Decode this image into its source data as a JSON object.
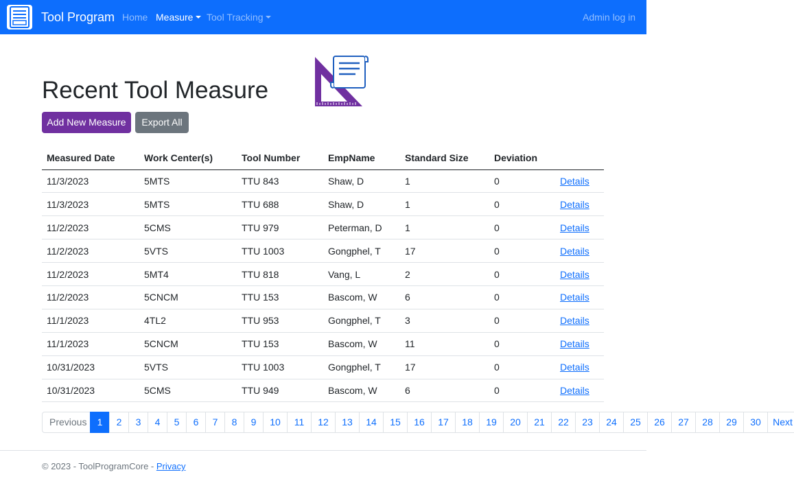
{
  "navbar": {
    "brand": "Tool Program",
    "items": [
      {
        "label": "Home"
      },
      {
        "label": "Measure"
      },
      {
        "label": "Tool Tracking"
      }
    ],
    "login": "Admin log in"
  },
  "page": {
    "title": "Recent Tool Measure",
    "add_button": "Add New Measure",
    "export_button": "Export All"
  },
  "table": {
    "headers": [
      "Measured Date",
      "Work Center(s)",
      "Tool Number",
      "EmpName",
      "Standard Size",
      "Deviation"
    ],
    "rows": [
      {
        "date": "11/3/2023",
        "work_center": "5MTS",
        "tool": "TTU 843",
        "emp": "Shaw, D",
        "size": "1",
        "deviation": "0",
        "link": "Details"
      },
      {
        "date": "11/3/2023",
        "work_center": "5MTS",
        "tool": "TTU 688",
        "emp": "Shaw, D",
        "size": "1",
        "deviation": "0",
        "link": "Details"
      },
      {
        "date": "11/2/2023",
        "work_center": "5CMS",
        "tool": "TTU 979",
        "emp": "Peterman, D",
        "size": "1",
        "deviation": "0",
        "link": "Details"
      },
      {
        "date": "11/2/2023",
        "work_center": "5VTS",
        "tool": "TTU 1003",
        "emp": "Gongphel, T",
        "size": "17",
        "deviation": "0",
        "link": "Details"
      },
      {
        "date": "11/2/2023",
        "work_center": "5MT4",
        "tool": "TTU 818",
        "emp": "Vang, L",
        "size": "2",
        "deviation": "0",
        "link": "Details"
      },
      {
        "date": "11/2/2023",
        "work_center": "5CNCM",
        "tool": "TTU 153",
        "emp": "Bascom, W",
        "size": "6",
        "deviation": "0",
        "link": "Details"
      },
      {
        "date": "11/1/2023",
        "work_center": "4TL2",
        "tool": "TTU 953",
        "emp": "Gongphel, T",
        "size": "3",
        "deviation": "0",
        "link": "Details"
      },
      {
        "date": "11/1/2023",
        "work_center": "5CNCM",
        "tool": "TTU 153",
        "emp": "Bascom, W",
        "size": "11",
        "deviation": "0",
        "link": "Details"
      },
      {
        "date": "10/31/2023",
        "work_center": "5VTS",
        "tool": "TTU 1003",
        "emp": "Gongphel, T",
        "size": "17",
        "deviation": "0",
        "link": "Details"
      },
      {
        "date": "10/31/2023",
        "work_center": "5CMS",
        "tool": "TTU 949",
        "emp": "Bascom, W",
        "size": "6",
        "deviation": "0",
        "link": "Details"
      }
    ]
  },
  "pagination": {
    "previous": "Previous",
    "next": "Next",
    "pages": [
      "1",
      "2",
      "3",
      "4",
      "5",
      "6",
      "7",
      "8",
      "9",
      "10",
      "11",
      "12",
      "13",
      "14",
      "15",
      "16",
      "17",
      "18",
      "19",
      "20",
      "21",
      "22",
      "23",
      "24",
      "25",
      "26",
      "27",
      "28",
      "29",
      "30"
    ],
    "active": "1"
  },
  "footer": {
    "text": "© 2023 - ToolProgramCore - ",
    "privacy": "Privacy"
  },
  "icons": {
    "brand": "tool-program-logo-icon",
    "hero": "measure-illustration-icon"
  },
  "colors": {
    "navbar": "#0d6efd",
    "add_button": "#7030a0",
    "export_button": "#6c757d",
    "link": "#0d6efd"
  }
}
